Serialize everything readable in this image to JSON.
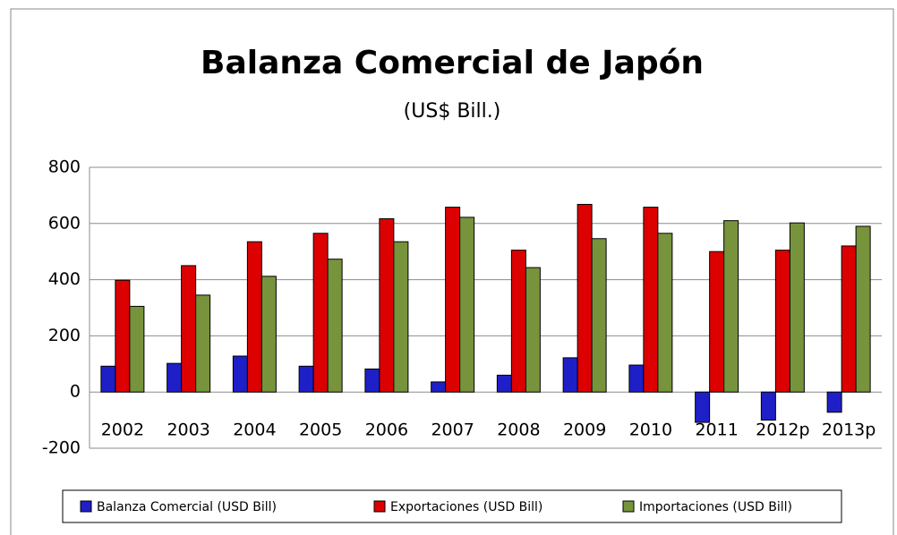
{
  "chart_data": {
    "type": "bar",
    "title": "Balanza Comercial de Japón",
    "subtitle": "(US$ Bill.)",
    "categories": [
      "2002",
      "2003",
      "2004",
      "2005",
      "2006",
      "2007",
      "2008",
      "2009",
      "2010",
      "2011",
      "2012p",
      "2013p"
    ],
    "series": [
      {
        "name": "Balanza Comercial (USD Bill)",
        "color": "#1f1fc8",
        "values": [
          92,
          102,
          128,
          92,
          82,
          36,
          60,
          122,
          96,
          -108,
          -100,
          -72
        ]
      },
      {
        "name": "Exportaciones (USD Bill)",
        "color": "#dd0000",
        "values": [
          398,
          450,
          535,
          565,
          617,
          658,
          505,
          668,
          658,
          500,
          505,
          520
        ]
      },
      {
        "name": "Importaciones (USD Bill)",
        "color": "#77933c",
        "values": [
          305,
          345,
          412,
          473,
          535,
          622,
          443,
          546,
          565,
          610,
          602,
          590
        ]
      }
    ],
    "ylim": [
      -200,
      800
    ],
    "yticks": [
      -200,
      0,
      200,
      400,
      600,
      800
    ],
    "grid": true,
    "legend": "bottom"
  }
}
